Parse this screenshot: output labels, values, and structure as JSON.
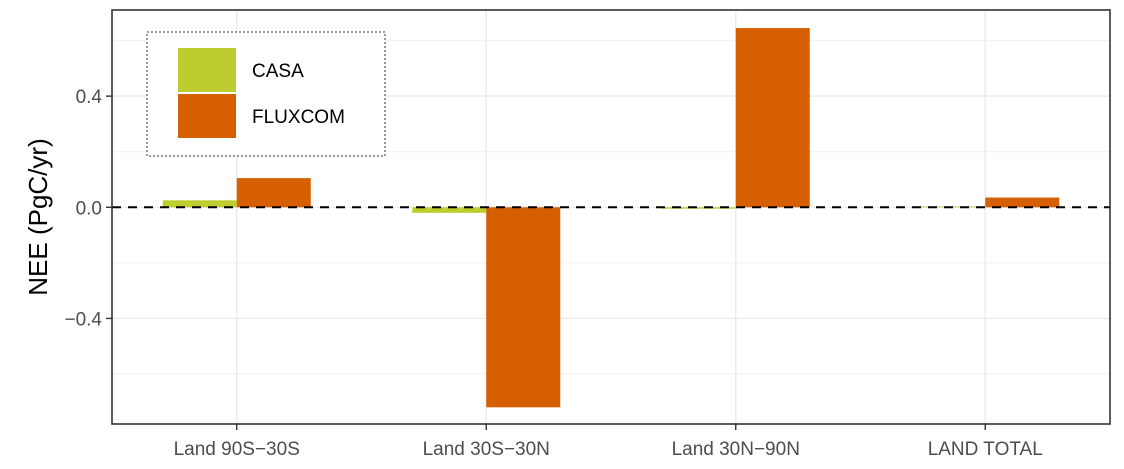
{
  "chart_data": {
    "type": "bar",
    "title": "",
    "xlabel": "",
    "ylabel": "NEE (PgC/yr)",
    "categories": [
      "Land 90S−30S",
      "Land 30S−30N",
      "Land 30N−90N",
      "LAND TOTAL"
    ],
    "series": [
      {
        "name": "CASA",
        "color": "#bdcd2f",
        "values": [
          0.025,
          -0.02,
          -0.005,
          0.003
        ]
      },
      {
        "name": "FLUXCOM",
        "color": "#d66000",
        "values": [
          0.105,
          -0.72,
          0.645,
          0.035
        ]
      }
    ],
    "ylim": [
      -0.78,
      0.71
    ],
    "yticks": [
      -0.4,
      0.0,
      0.4
    ],
    "ytick_labels": [
      "−0.4",
      "0.0",
      "0.4"
    ],
    "reference_line": {
      "y": 0.0,
      "style": "dashed"
    },
    "grid": true,
    "legend": {
      "position": "top-left",
      "border": "dotted"
    }
  }
}
